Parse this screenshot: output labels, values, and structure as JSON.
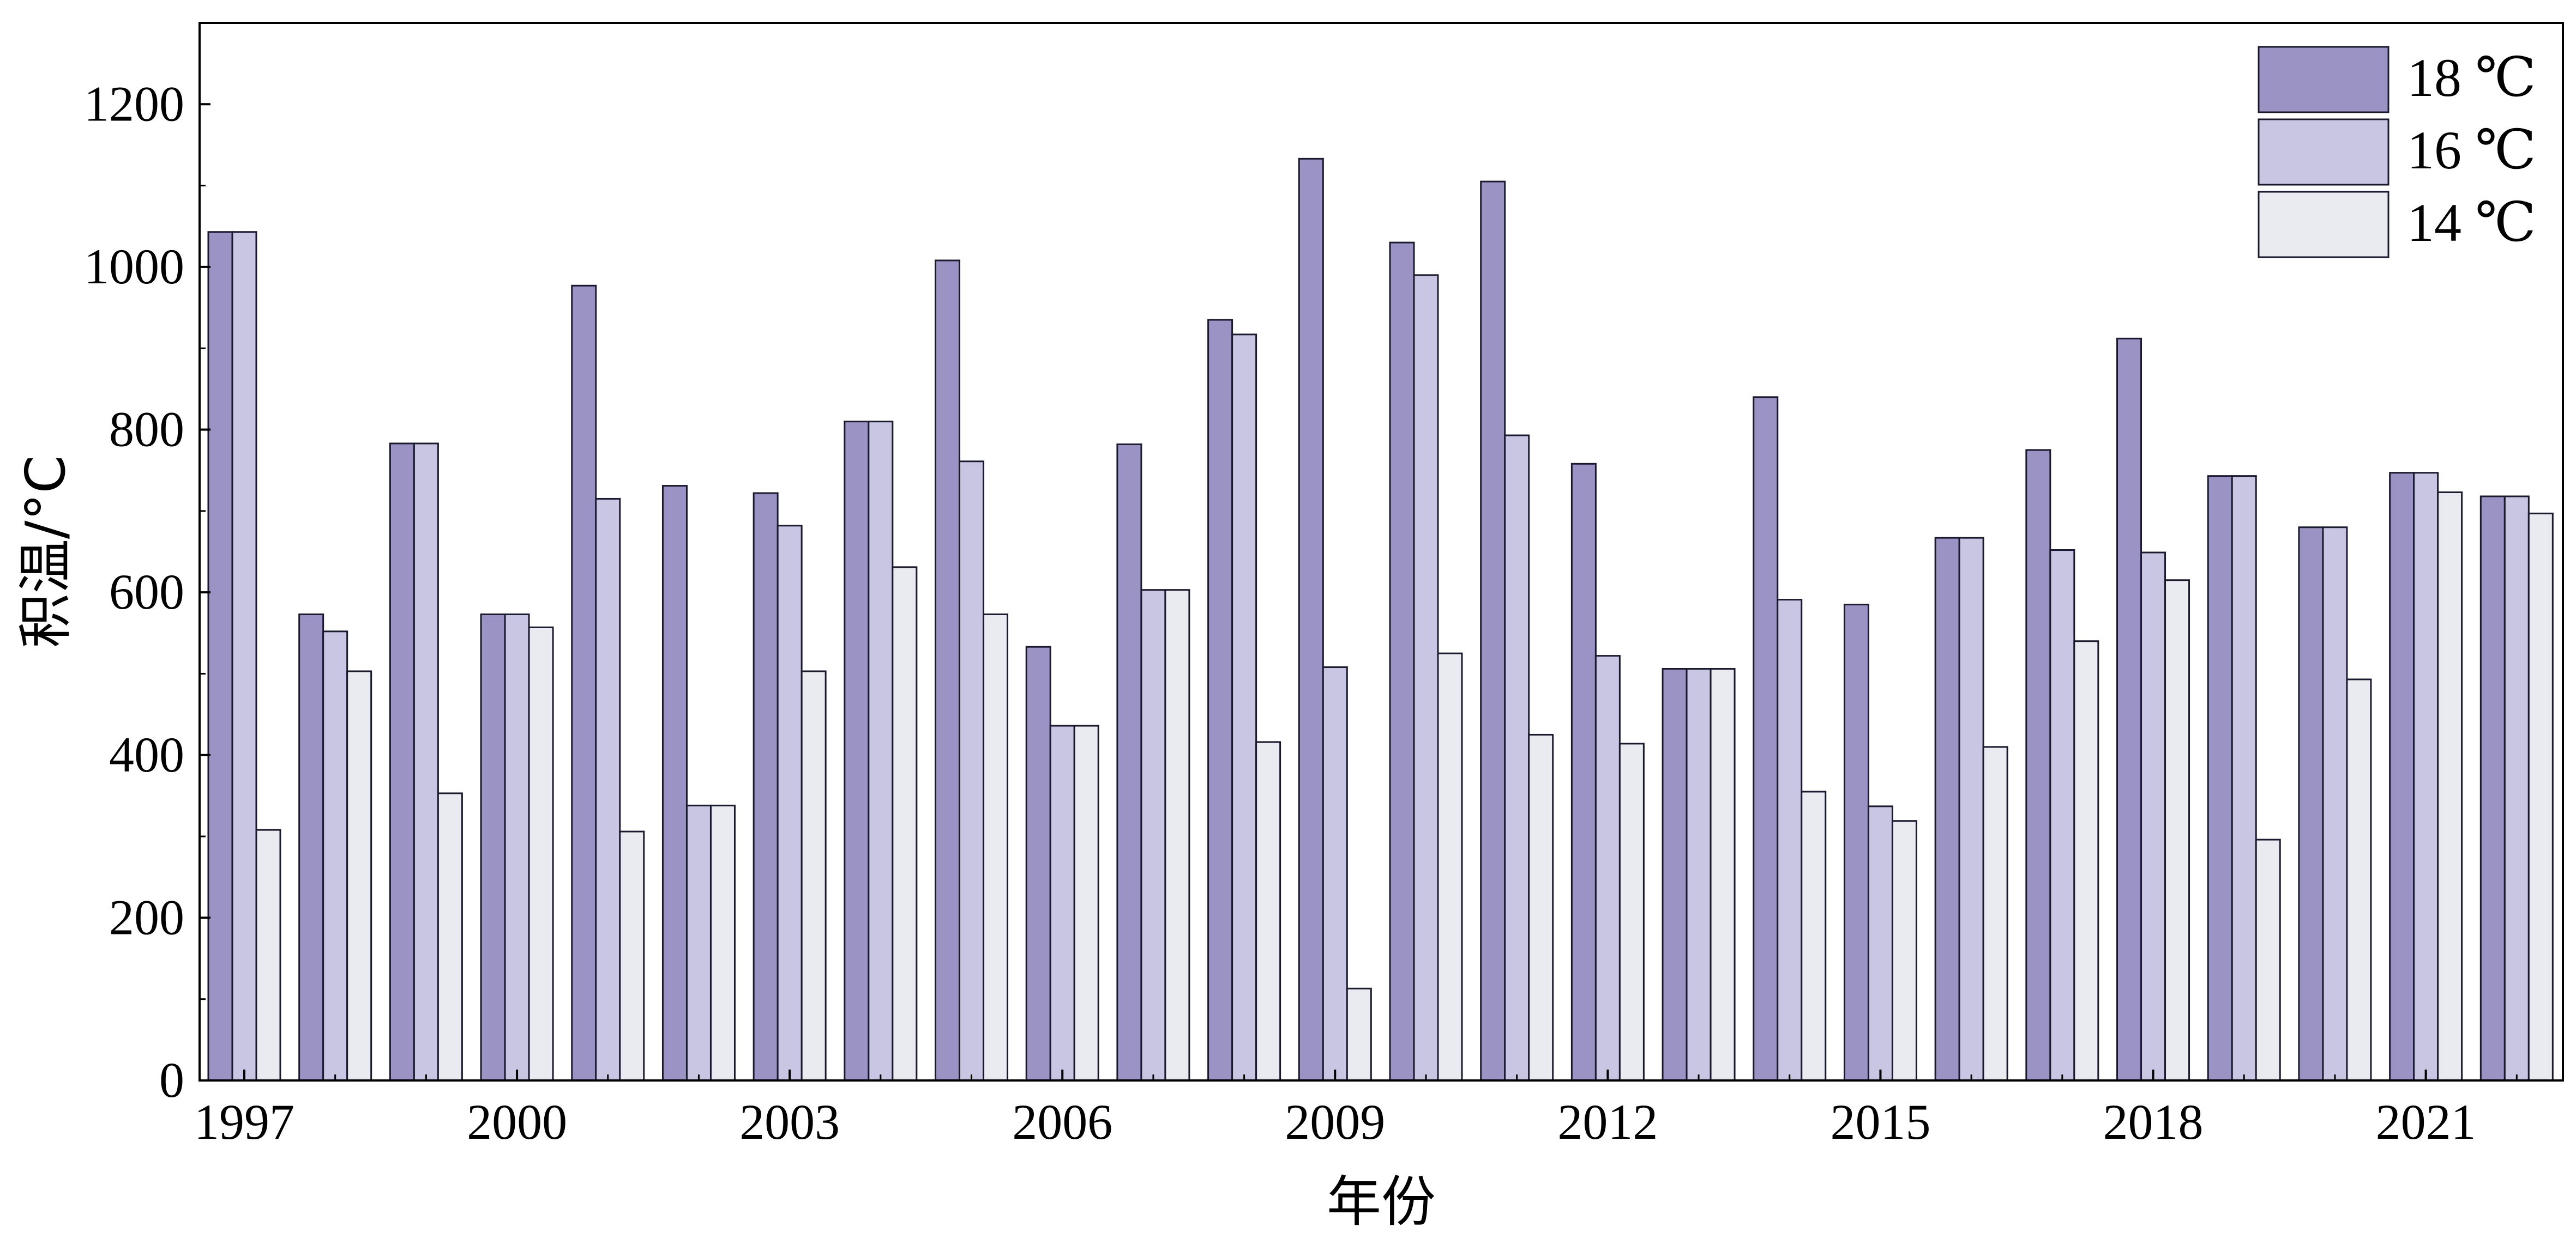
{
  "chart_data": {
    "type": "bar",
    "xlabel": "年份",
    "ylabel": "积温/°C",
    "ylim": [
      0,
      1300
    ],
    "yticks": [
      0,
      200,
      400,
      600,
      800,
      1000,
      1200
    ],
    "categories": [
      "1997",
      "1998",
      "1999",
      "2000",
      "2001",
      "2002",
      "2003",
      "2004",
      "2005",
      "2006",
      "2007",
      "2008",
      "2009",
      "2010",
      "2011",
      "2012",
      "2013",
      "2014",
      "2015",
      "2016",
      "2017",
      "2018",
      "2019",
      "2020",
      "2021",
      "2022"
    ],
    "xtick_labels": [
      "1997",
      "2000",
      "2003",
      "2006",
      "2009",
      "2012",
      "2015",
      "2018",
      "2021"
    ],
    "legend_position": "top-right",
    "grid": false,
    "series": [
      {
        "name": "18 ℃",
        "color": "#9a93c4",
        "values": [
          1043,
          573,
          783,
          573,
          977,
          731,
          722,
          810,
          1008,
          533,
          782,
          935,
          1133,
          1030,
          1105,
          758,
          506,
          840,
          585,
          667,
          775,
          912,
          743,
          680,
          747,
          718
        ]
      },
      {
        "name": "16 ℃",
        "color": "#c9c6e3",
        "values": [
          1043,
          552,
          783,
          573,
          715,
          338,
          682,
          810,
          761,
          436,
          603,
          917,
          508,
          990,
          793,
          522,
          506,
          591,
          337,
          667,
          652,
          649,
          743,
          680,
          747,
          718
        ]
      },
      {
        "name": "14 ℃",
        "color": "#eaeaf1",
        "values": [
          308,
          503,
          353,
          557,
          306,
          338,
          503,
          631,
          573,
          436,
          603,
          416,
          113,
          525,
          425,
          414,
          506,
          355,
          319,
          410,
          540,
          615,
          296,
          493,
          723,
          697
        ]
      }
    ]
  }
}
